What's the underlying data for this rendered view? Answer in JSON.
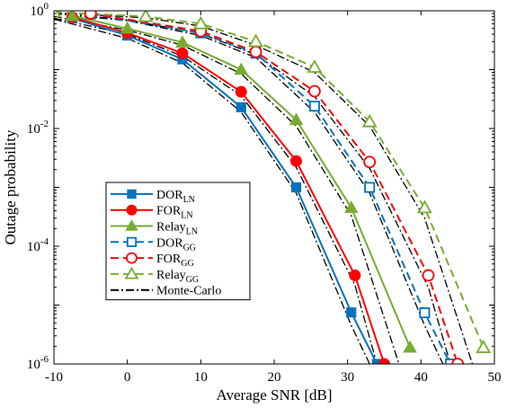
{
  "chart_data": {
    "type": "line",
    "title": "",
    "xlabel": "Average SNR [dB]",
    "ylabel": "Outage probability",
    "xlim": [
      -10,
      50
    ],
    "ylim_exponent": [
      -6,
      0
    ],
    "yscale": "log",
    "xticks": [
      "-10",
      "0",
      "10",
      "20",
      "30",
      "40",
      "50"
    ],
    "yticks": [
      {
        "base": "10",
        "exp": "-6"
      },
      {
        "base": "10",
        "exp": "-4"
      },
      {
        "base": "10",
        "exp": "-2"
      },
      {
        "base": "10",
        "exp": "0"
      }
    ],
    "grid": false,
    "legend_position": "lower-left",
    "series": [
      {
        "name_main": "DOR",
        "name_sub": "LN",
        "color": "#0072bd",
        "dash": "solid",
        "marker": "square",
        "filled": true,
        "x": [
          -7.5,
          0,
          7.5,
          15.5,
          23,
          30.5,
          34
        ],
        "y": [
          0.75,
          0.38,
          0.15,
          0.023,
          0.001,
          7.5e-06,
          1e-06
        ]
      },
      {
        "name_main": "FOR",
        "name_sub": "LN",
        "color": "#ff0000",
        "dash": "solid",
        "marker": "circle",
        "filled": true,
        "x": [
          -7.5,
          0,
          7.5,
          15.5,
          23,
          31,
          35
        ],
        "y": [
          0.78,
          0.42,
          0.19,
          0.042,
          0.0028,
          3.2e-05,
          1e-06
        ]
      },
      {
        "name_main": "Relay",
        "name_sub": "LN",
        "color": "#77ac30",
        "dash": "solid",
        "marker": "triangle",
        "filled": true,
        "x": [
          -7.5,
          0,
          7.5,
          15.5,
          23,
          30.5,
          38.5
        ],
        "y": [
          0.82,
          0.5,
          0.29,
          0.1,
          0.014,
          0.00045,
          1.9e-06
        ]
      },
      {
        "name_main": "DOR",
        "name_sub": "GG",
        "color": "#0072bd",
        "dash": "dashed",
        "marker": "square",
        "filled": false,
        "x": [
          -5,
          10,
          17.5,
          25.5,
          33,
          40.5,
          44
        ],
        "y": [
          0.88,
          0.42,
          0.19,
          0.024,
          0.001,
          7.4e-06,
          1e-06
        ]
      },
      {
        "name_main": "FOR",
        "name_sub": "GG",
        "color": "#ff0000",
        "dash": "dashed",
        "marker": "circle",
        "filled": false,
        "x": [
          -5,
          10,
          17.5,
          25.5,
          33,
          41,
          45
        ],
        "y": [
          0.9,
          0.45,
          0.2,
          0.043,
          0.0027,
          3.2e-05,
          1e-06
        ]
      },
      {
        "name_main": "Relay",
        "name_sub": "GG",
        "color": "#77ac30",
        "dash": "dashed",
        "marker": "triangle",
        "filled": false,
        "x": [
          -10,
          2.5,
          10,
          17.5,
          25.5,
          33,
          40.5,
          48.5
        ],
        "y": [
          0.95,
          0.8,
          0.6,
          0.3,
          0.11,
          0.013,
          0.00045,
          1.9e-06
        ]
      },
      {
        "name_main": "Monte-Carlo",
        "name_sub": "",
        "color": "#000000",
        "dash": "dashdot",
        "marker": "none",
        "filled": false,
        "x": [],
        "y": []
      }
    ],
    "monte_carlo_curves": [
      {
        "x": [
          -10,
          0,
          7.5,
          15.5,
          23,
          30.5,
          33
        ],
        "y": [
          0.72,
          0.34,
          0.13,
          0.019,
          0.0008,
          4.5e-06,
          1e-06
        ]
      },
      {
        "x": [
          -10,
          0,
          7.5,
          15.5,
          23,
          31,
          34
        ],
        "y": [
          0.75,
          0.4,
          0.17,
          0.036,
          0.0022,
          2.2e-05,
          1e-06
        ]
      },
      {
        "x": [
          -10,
          0,
          7.5,
          15.5,
          23,
          30.5,
          37
        ],
        "y": [
          0.8,
          0.47,
          0.26,
          0.085,
          0.011,
          0.00033,
          1e-06
        ]
      },
      {
        "x": [
          -10,
          0,
          10,
          17.5,
          25.5,
          33,
          40.5,
          43
        ],
        "y": [
          0.9,
          0.68,
          0.38,
          0.16,
          0.019,
          0.0008,
          4.5e-06,
          1e-06
        ]
      },
      {
        "x": [
          -10,
          0,
          10,
          17.5,
          25.5,
          33,
          41,
          44
        ],
        "y": [
          0.92,
          0.7,
          0.41,
          0.18,
          0.035,
          0.0021,
          2e-05,
          1e-06
        ]
      },
      {
        "x": [
          -10,
          2.5,
          10,
          17.5,
          25.5,
          33,
          40.5,
          47
        ],
        "y": [
          0.93,
          0.76,
          0.55,
          0.26,
          0.09,
          0.011,
          0.0003,
          1e-06
        ]
      }
    ]
  }
}
